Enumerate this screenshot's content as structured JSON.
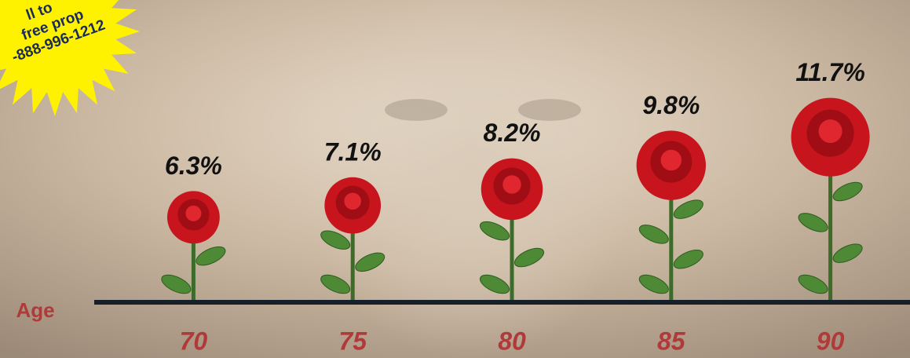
{
  "chart_data": {
    "type": "pictograph",
    "x_axis_label": "Age",
    "categories": [
      "70",
      "75",
      "80",
      "85",
      "90"
    ],
    "values": [
      6.3,
      7.1,
      8.2,
      9.8,
      11.7
    ],
    "value_labels": [
      "6.3%",
      "7.1%",
      "8.2%",
      "9.8%",
      "11.7%"
    ],
    "color": "#c8141c",
    "badge": {
      "lines": [
        "ll to",
        "free prop",
        "-888-996-1212"
      ]
    }
  }
}
